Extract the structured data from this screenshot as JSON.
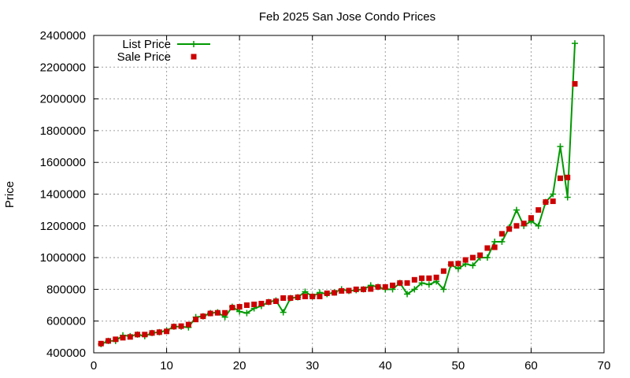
{
  "colors": {
    "list": "#009900",
    "sale": "#cc0000",
    "grid": "#a0a0a0",
    "axis": "#000000"
  },
  "chart_data": {
    "type": "line",
    "title": "Feb 2025 San Jose Condo Prices",
    "xlabel": "",
    "ylabel": "Price",
    "xlim": [
      0,
      70
    ],
    "ylim": [
      400000,
      2400000
    ],
    "xticks": [
      0,
      10,
      20,
      30,
      40,
      50,
      60,
      70
    ],
    "yticks": [
      400000,
      600000,
      800000,
      1000000,
      1200000,
      1400000,
      1600000,
      1800000,
      2000000,
      2200000,
      2400000
    ],
    "grid": true,
    "legend_position": "top-left",
    "x": [
      1,
      2,
      3,
      4,
      5,
      6,
      7,
      8,
      9,
      10,
      11,
      12,
      13,
      14,
      15,
      16,
      17,
      18,
      19,
      20,
      21,
      22,
      23,
      24,
      25,
      26,
      27,
      28,
      29,
      30,
      31,
      32,
      33,
      34,
      35,
      36,
      37,
      38,
      39,
      40,
      41,
      42,
      43,
      44,
      45,
      46,
      47,
      48,
      49,
      50,
      51,
      52,
      53,
      54,
      55,
      56,
      57,
      58,
      59,
      60,
      61,
      62,
      63,
      64,
      65,
      66
    ],
    "series": [
      {
        "name": "List Price",
        "style": "line-cross",
        "values": [
          455000,
          475000,
          475000,
          510000,
          505000,
          515000,
          505000,
          525000,
          530000,
          540000,
          565000,
          565000,
          560000,
          625000,
          630000,
          650000,
          655000,
          625000,
          690000,
          660000,
          650000,
          680000,
          695000,
          720000,
          730000,
          655000,
          745000,
          750000,
          785000,
          755000,
          780000,
          770000,
          780000,
          800000,
          790000,
          795000,
          800000,
          825000,
          815000,
          800000,
          800000,
          840000,
          770000,
          800000,
          840000,
          830000,
          850000,
          800000,
          955000,
          930000,
          960000,
          950000,
          1000000,
          1000000,
          1100000,
          1100000,
          1190000,
          1300000,
          1200000,
          1230000,
          1200000,
          1350000,
          1400000,
          1700000,
          1380000,
          2350000
        ]
      },
      {
        "name": "Sale Price",
        "style": "square",
        "values": [
          458000,
          475000,
          485000,
          495000,
          500000,
          515000,
          515000,
          525000,
          530000,
          535000,
          565000,
          568000,
          578000,
          610000,
          630000,
          648000,
          652000,
          652000,
          685000,
          690000,
          700000,
          705000,
          710000,
          720000,
          725000,
          745000,
          745000,
          750000,
          755000,
          755000,
          755000,
          775000,
          778000,
          790000,
          792000,
          800000,
          800000,
          802000,
          815000,
          815000,
          825000,
          840000,
          840000,
          860000,
          870000,
          870000,
          875000,
          915000,
          960000,
          962000,
          985000,
          1000000,
          1015000,
          1060000,
          1065000,
          1150000,
          1180000,
          1200000,
          1215000,
          1250000,
          1300000,
          1350000,
          1355000,
          1500000,
          1505000,
          2095000
        ]
      }
    ]
  }
}
